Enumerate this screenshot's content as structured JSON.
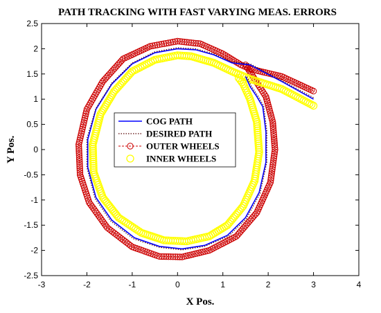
{
  "chart_data": {
    "type": "line",
    "title": "PATH TRACKING WITH FAST VARYING MEAS. ERRORS",
    "xlabel": "X Pos.",
    "ylabel": "Y Pos.",
    "xlim": [
      -3,
      4
    ],
    "ylim": [
      -2.5,
      2.5
    ],
    "xticks": [
      "-3",
      "-2",
      "-1",
      "0",
      "1",
      "2",
      "3",
      "4"
    ],
    "yticks": [
      "-2.5",
      "-2",
      "-1.5",
      "-1",
      "-0.5",
      "0",
      "0.5",
      "1",
      "1.5",
      "2",
      "2.5"
    ],
    "grid": false,
    "legend_position": "center-left inside plot",
    "series": [
      {
        "name": "COG PATH",
        "color": "#0000ff",
        "style": "solid",
        "points": [
          [
            3.0,
            1.0
          ],
          [
            2.3,
            1.35
          ],
          [
            1.6,
            1.68
          ],
          [
            1.2,
            1.72
          ],
          [
            0.8,
            1.88
          ],
          [
            0.4,
            1.98
          ],
          [
            0.0,
            2.0
          ],
          [
            -0.5,
            1.92
          ],
          [
            -1.0,
            1.7
          ],
          [
            -1.45,
            1.3
          ],
          [
            -1.8,
            0.8
          ],
          [
            -1.98,
            0.2
          ],
          [
            -1.98,
            -0.35
          ],
          [
            -1.8,
            -0.95
          ],
          [
            -1.45,
            -1.4
          ],
          [
            -0.95,
            -1.75
          ],
          [
            -0.4,
            -1.92
          ],
          [
            0.1,
            -1.97
          ],
          [
            0.6,
            -1.9
          ],
          [
            1.1,
            -1.7
          ],
          [
            1.5,
            -1.35
          ],
          [
            1.8,
            -0.85
          ],
          [
            1.95,
            -0.25
          ],
          [
            1.95,
            0.35
          ],
          [
            1.88,
            0.85
          ],
          [
            1.75,
            1.05
          ],
          [
            1.6,
            1.25
          ],
          [
            1.5,
            1.45
          ]
        ]
      },
      {
        "name": "DESIRED PATH",
        "color": "#550000",
        "style": "dotted",
        "points": [
          [
            3.0,
            1.03
          ],
          [
            2.3,
            1.37
          ],
          [
            1.6,
            1.7
          ],
          [
            1.2,
            1.74
          ],
          [
            0.8,
            1.9
          ],
          [
            0.4,
            2.0
          ],
          [
            0.0,
            2.02
          ],
          [
            -0.5,
            1.94
          ],
          [
            -1.0,
            1.72
          ],
          [
            -1.45,
            1.32
          ],
          [
            -1.8,
            0.82
          ],
          [
            -2.0,
            0.22
          ],
          [
            -2.0,
            -0.35
          ],
          [
            -1.82,
            -0.97
          ],
          [
            -1.47,
            -1.42
          ],
          [
            -0.97,
            -1.77
          ],
          [
            -0.4,
            -1.94
          ],
          [
            0.1,
            -1.99
          ],
          [
            0.6,
            -1.92
          ],
          [
            1.12,
            -1.72
          ],
          [
            1.52,
            -1.37
          ],
          [
            1.82,
            -0.87
          ],
          [
            1.97,
            -0.25
          ],
          [
            1.97,
            0.37
          ],
          [
            1.9,
            0.87
          ],
          [
            1.77,
            1.07
          ],
          [
            1.62,
            1.27
          ],
          [
            1.52,
            1.47
          ]
        ]
      },
      {
        "name": "OUTER WHEELS",
        "color": "#cc0000",
        "marker": "circle-dashed",
        "points": [
          [
            3.0,
            1.16
          ],
          [
            2.3,
            1.45
          ],
          [
            1.6,
            1.6
          ],
          [
            1.4,
            1.68
          ],
          [
            1.0,
            1.9
          ],
          [
            0.5,
            2.1
          ],
          [
            0.0,
            2.15
          ],
          [
            -0.6,
            2.05
          ],
          [
            -1.2,
            1.8
          ],
          [
            -1.65,
            1.35
          ],
          [
            -2.0,
            0.8
          ],
          [
            -2.18,
            0.1
          ],
          [
            -2.15,
            -0.5
          ],
          [
            -1.95,
            -1.05
          ],
          [
            -1.55,
            -1.55
          ],
          [
            -1.0,
            -1.93
          ],
          [
            -0.4,
            -2.12
          ],
          [
            0.1,
            -2.13
          ],
          [
            0.7,
            -2.0
          ],
          [
            1.3,
            -1.72
          ],
          [
            1.75,
            -1.25
          ],
          [
            2.05,
            -0.65
          ],
          [
            2.15,
            0.0
          ],
          [
            2.1,
            0.55
          ],
          [
            1.95,
            1.05
          ],
          [
            1.7,
            1.4
          ],
          [
            1.5,
            1.68
          ]
        ]
      },
      {
        "name": "INNER WHEELS",
        "color": "#ffff00",
        "marker": "circle",
        "points": [
          [
            3.0,
            0.87
          ],
          [
            2.3,
            1.2
          ],
          [
            1.6,
            1.4
          ],
          [
            1.2,
            1.55
          ],
          [
            0.8,
            1.72
          ],
          [
            0.3,
            1.85
          ],
          [
            0.0,
            1.87
          ],
          [
            -0.5,
            1.78
          ],
          [
            -1.0,
            1.55
          ],
          [
            -1.4,
            1.15
          ],
          [
            -1.7,
            0.7
          ],
          [
            -1.87,
            0.1
          ],
          [
            -1.85,
            -0.45
          ],
          [
            -1.65,
            -0.95
          ],
          [
            -1.3,
            -1.35
          ],
          [
            -0.8,
            -1.65
          ],
          [
            -0.3,
            -1.8
          ],
          [
            0.2,
            -1.82
          ],
          [
            0.7,
            -1.72
          ],
          [
            1.1,
            -1.5
          ],
          [
            1.45,
            -1.12
          ],
          [
            1.7,
            -0.62
          ],
          [
            1.8,
            -0.05
          ],
          [
            1.75,
            0.55
          ],
          [
            1.6,
            1.0
          ],
          [
            1.45,
            1.3
          ],
          [
            1.35,
            1.42
          ]
        ]
      }
    ]
  }
}
